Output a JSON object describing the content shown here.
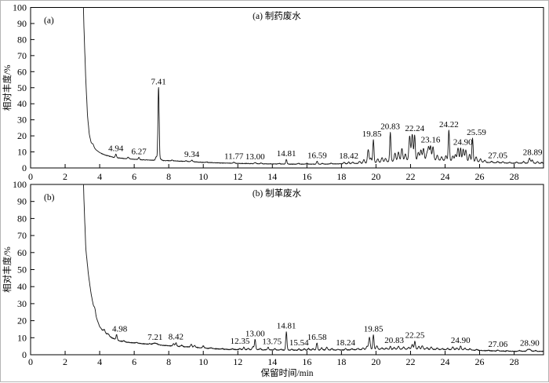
{
  "chart_data": {
    "type": "line",
    "figure_kind": "total-ion-chromatograms",
    "x_axis_title": "保留时间/min",
    "y_axis_title": "相对丰度/%",
    "panels": [
      {
        "panel_label": "(a)",
        "title": "(a) 制药废水",
        "ylabel": "相对丰度/%",
        "xlabel": "",
        "xlim": [
          0,
          29.7
        ],
        "ylim": [
          0,
          100
        ],
        "xticks": [
          0,
          2,
          4,
          6,
          8,
          10,
          12,
          14,
          16,
          18,
          20,
          22,
          24,
          26,
          28
        ],
        "yticks": [
          0,
          10,
          20,
          30,
          40,
          50,
          60,
          70,
          80,
          90,
          100
        ],
        "solvent_front_rt": 3.05,
        "noise": 0.22,
        "labeled_peaks": [
          {
            "rt": 4.94,
            "apex": 8.6,
            "label": "4.94"
          },
          {
            "rt": 6.27,
            "apex": 6.6,
            "label": "6.27"
          },
          {
            "rt": 7.41,
            "apex": 50,
            "label": "7.41"
          },
          {
            "rt": 9.34,
            "apex": 4.8,
            "label": "9.34",
            "w": 0.05
          },
          {
            "rt": 11.77,
            "apex": 3.5,
            "label": "11.77",
            "w": 0.05
          },
          {
            "rt": 13.0,
            "apex": 3.4,
            "label": "13.00",
            "w": 0.05
          },
          {
            "rt": 14.81,
            "apex": 5.2,
            "label": "14.81"
          },
          {
            "rt": 16.59,
            "apex": 4.2,
            "label": "16.59"
          },
          {
            "rt": 18.42,
            "apex": 3.8,
            "label": "18.42"
          },
          {
            "rt": 19.85,
            "apex": 17.5,
            "label": "19.85",
            "dx": -2
          },
          {
            "rt": 20.83,
            "apex": 22,
            "label": "20.83"
          },
          {
            "rt": 22.24,
            "apex": 20.5,
            "label": "22.24"
          },
          {
            "rt": 23.16,
            "apex": 13.5,
            "label": "23.16"
          },
          {
            "rt": 24.22,
            "apex": 23.5,
            "label": "24.22"
          },
          {
            "rt": 24.9,
            "apex": 12.5,
            "label": "24.90",
            "dx": 3
          },
          {
            "rt": 25.59,
            "apex": 18.5,
            "label": "25.59",
            "dx": 5
          },
          {
            "rt": 27.05,
            "apex": 4.0,
            "label": "27.05",
            "w": 0.05
          },
          {
            "rt": 28.89,
            "apex": 6.0,
            "label": "28.89",
            "dx": 4,
            "w": 0.05
          }
        ],
        "minor_peaks": [
          [
            3.62,
            1.2
          ],
          [
            5.65,
            1.0
          ],
          [
            7.28,
            2.2
          ],
          [
            7.55,
            0.8
          ],
          [
            8.2,
            0.5
          ],
          [
            9.0,
            0.4
          ],
          [
            10.2,
            0.3
          ],
          [
            13.35,
            0.5
          ],
          [
            14.4,
            0.4
          ],
          [
            15.5,
            0.5
          ],
          [
            16.0,
            0.5
          ],
          [
            16.9,
            0.4
          ],
          [
            17.4,
            0.5
          ],
          [
            18.15,
            0.8
          ],
          [
            18.65,
            0.9
          ],
          [
            19.05,
            1.2
          ],
          [
            19.3,
            2.2
          ],
          [
            19.55,
            8.5
          ],
          [
            19.7,
            3.0
          ],
          [
            20.1,
            2.2
          ],
          [
            20.35,
            2.8
          ],
          [
            20.55,
            2.2
          ],
          [
            21.1,
            5.0
          ],
          [
            21.3,
            5.5
          ],
          [
            21.5,
            7.5
          ],
          [
            21.7,
            4.0
          ],
          [
            21.95,
            15.0
          ],
          [
            22.1,
            16.0
          ],
          [
            22.45,
            4.5
          ],
          [
            22.6,
            6.0
          ],
          [
            22.75,
            7.0
          ],
          [
            22.95,
            4.0
          ],
          [
            23.05,
            8.0
          ],
          [
            23.3,
            8.3
          ],
          [
            23.55,
            3.0
          ],
          [
            23.8,
            2.2
          ],
          [
            24.05,
            3.0
          ],
          [
            24.45,
            3.0
          ],
          [
            24.6,
            4.0
          ],
          [
            24.75,
            8.0
          ],
          [
            25.05,
            7.5
          ],
          [
            25.2,
            7.0
          ],
          [
            25.42,
            4.5
          ],
          [
            25.8,
            3.0
          ],
          [
            26.05,
            2.0
          ],
          [
            26.3,
            1.2
          ],
          [
            26.7,
            0.8
          ],
          [
            27.35,
            0.8
          ],
          [
            27.75,
            0.6
          ],
          [
            28.15,
            0.7
          ],
          [
            28.55,
            1.0
          ],
          [
            29.05,
            2.0
          ],
          [
            29.35,
            1.0
          ],
          [
            29.6,
            0.6
          ]
        ],
        "baseline": [
          [
            3.02,
            115
          ],
          [
            3.1,
            84
          ],
          [
            3.2,
            54
          ],
          [
            3.3,
            32
          ],
          [
            3.4,
            21
          ],
          [
            3.5,
            16
          ],
          [
            3.65,
            13
          ],
          [
            3.8,
            11.2
          ],
          [
            4.0,
            9.6
          ],
          [
            4.3,
            8.1
          ],
          [
            4.7,
            6.9
          ],
          [
            5.0,
            6.3
          ],
          [
            5.5,
            5.8
          ],
          [
            6.0,
            5.4
          ],
          [
            6.6,
            5.0
          ],
          [
            7.2,
            4.8
          ],
          [
            7.8,
            4.6
          ],
          [
            8.5,
            4.3
          ],
          [
            9.3,
            3.9
          ],
          [
            10.0,
            3.5
          ],
          [
            10.8,
            3.2
          ],
          [
            11.8,
            2.9
          ],
          [
            12.8,
            2.7
          ],
          [
            14.0,
            2.5
          ],
          [
            15.0,
            2.4
          ],
          [
            16.0,
            2.4
          ],
          [
            17.0,
            2.4
          ],
          [
            18.0,
            2.6
          ],
          [
            18.8,
            2.8
          ],
          [
            19.5,
            3.0
          ],
          [
            20.3,
            3.6
          ],
          [
            21.0,
            4.2
          ],
          [
            21.8,
            4.8
          ],
          [
            22.5,
            5.2
          ],
          [
            23.2,
            5.0
          ],
          [
            24.0,
            4.7
          ],
          [
            24.8,
            4.3
          ],
          [
            25.6,
            4.0
          ],
          [
            26.2,
            3.6
          ],
          [
            27.0,
            3.2
          ],
          [
            27.8,
            3.0
          ],
          [
            28.6,
            3.0
          ],
          [
            29.3,
            2.9
          ],
          [
            29.7,
            2.8
          ]
        ]
      },
      {
        "panel_label": "(b)",
        "title": "(b) 制革废水",
        "ylabel": "相对丰度/%",
        "xlabel": "保留时间/min",
        "xlim": [
          0,
          29.7
        ],
        "ylim": [
          0,
          100
        ],
        "xticks": [
          0,
          2,
          4,
          6,
          8,
          10,
          12,
          14,
          16,
          18,
          20,
          22,
          24,
          26,
          28
        ],
        "yticks": [
          0,
          10,
          20,
          30,
          40,
          50,
          60,
          70,
          80,
          90,
          100
        ],
        "solvent_front_rt": 3.05,
        "noise": 0.28,
        "labeled_peaks": [
          {
            "rt": 4.98,
            "apex": 11.8,
            "label": "4.98",
            "dx": 4
          },
          {
            "rt": 7.21,
            "apex": 6.8,
            "label": "7.21",
            "w": 0.12
          },
          {
            "rt": 8.42,
            "apex": 7.0,
            "label": "8.42"
          },
          {
            "rt": 12.35,
            "apex": 4.4,
            "label": "12.35",
            "dx": -5
          },
          {
            "rt": 13.0,
            "apex": 9.0,
            "label": "13.00"
          },
          {
            "rt": 13.75,
            "apex": 4.5,
            "label": "13.75",
            "dx": 5
          },
          {
            "rt": 14.81,
            "apex": 13.3,
            "label": "14.81"
          },
          {
            "rt": 15.54,
            "apex": 3.6,
            "label": "15.54"
          },
          {
            "rt": 16.58,
            "apex": 7.0,
            "label": "16.58"
          },
          {
            "rt": 18.24,
            "apex": 3.7,
            "label": "18.24"
          },
          {
            "rt": 19.85,
            "apex": 11.7,
            "label": "19.85"
          },
          {
            "rt": 20.83,
            "apex": 5.0,
            "label": "20.83",
            "dx": 5
          },
          {
            "rt": 22.25,
            "apex": 7.9,
            "label": "22.25"
          },
          {
            "rt": 24.9,
            "apex": 5.2,
            "label": "24.90"
          },
          {
            "rt": 27.06,
            "apex": 2.7,
            "label": "27.06",
            "w": 0.05
          },
          {
            "rt": 28.9,
            "apex": 3.2,
            "label": "28.90",
            "w": 0.06
          }
        ],
        "minor_peaks": [
          [
            3.72,
            2.2
          ],
          [
            4.27,
            1.5
          ],
          [
            4.5,
            0.8
          ],
          [
            5.4,
            0.6
          ],
          [
            6.15,
            0.4
          ],
          [
            6.9,
            0.4
          ],
          [
            8.28,
            1.4
          ],
          [
            8.75,
            0.7
          ],
          [
            9.3,
            1.6
          ],
          [
            9.5,
            1.1
          ],
          [
            10.0,
            1.2
          ],
          [
            10.45,
            0.5
          ],
          [
            11.1,
            0.4
          ],
          [
            11.7,
            0.5
          ],
          [
            12.12,
            0.7
          ],
          [
            12.6,
            0.7
          ],
          [
            12.88,
            1.8
          ],
          [
            13.3,
            0.7
          ],
          [
            14.15,
            0.7
          ],
          [
            14.5,
            0.5
          ],
          [
            15.12,
            0.6
          ],
          [
            15.85,
            0.8
          ],
          [
            16.1,
            1.0
          ],
          [
            16.35,
            0.8
          ],
          [
            16.85,
            1.3
          ],
          [
            17.15,
            1.6
          ],
          [
            17.45,
            0.8
          ],
          [
            17.8,
            0.5
          ],
          [
            18.6,
            0.6
          ],
          [
            18.95,
            0.7
          ],
          [
            19.25,
            1.0
          ],
          [
            19.48,
            1.8
          ],
          [
            19.62,
            7.0
          ],
          [
            20.05,
            2.0
          ],
          [
            20.35,
            0.8
          ],
          [
            20.6,
            0.8
          ],
          [
            21.05,
            1.0
          ],
          [
            21.3,
            1.6
          ],
          [
            21.6,
            1.2
          ],
          [
            21.9,
            1.0
          ],
          [
            22.1,
            2.6
          ],
          [
            22.48,
            1.6
          ],
          [
            22.68,
            2.0
          ],
          [
            22.95,
            1.0
          ],
          [
            23.2,
            1.3
          ],
          [
            23.55,
            0.8
          ],
          [
            23.85,
            0.6
          ],
          [
            24.15,
            0.8
          ],
          [
            24.45,
            1.6
          ],
          [
            24.68,
            1.0
          ],
          [
            25.15,
            1.0
          ],
          [
            25.45,
            0.8
          ],
          [
            25.85,
            0.5
          ],
          [
            26.5,
            0.3
          ],
          [
            27.6,
            0.3
          ],
          [
            28.3,
            0.4
          ],
          [
            28.78,
            0.8
          ],
          [
            29.25,
            0.4
          ]
        ],
        "baseline": [
          [
            3.02,
            115
          ],
          [
            3.1,
            88
          ],
          [
            3.2,
            62
          ],
          [
            3.35,
            47
          ],
          [
            3.5,
            36
          ],
          [
            3.65,
            28
          ],
          [
            3.8,
            22
          ],
          [
            4.0,
            16.5
          ],
          [
            4.2,
            14
          ],
          [
            4.45,
            11.8
          ],
          [
            4.7,
            10
          ],
          [
            5.0,
            8.6
          ],
          [
            5.3,
            7.8
          ],
          [
            5.7,
            7.2
          ],
          [
            6.2,
            6.8
          ],
          [
            6.7,
            6.3
          ],
          [
            7.2,
            5.9
          ],
          [
            7.7,
            5.5
          ],
          [
            8.3,
            5.1
          ],
          [
            9.0,
            4.7
          ],
          [
            9.7,
            4.2
          ],
          [
            10.4,
            3.7
          ],
          [
            11.2,
            3.2
          ],
          [
            12.0,
            3.0
          ],
          [
            13.0,
            3.0
          ],
          [
            14.0,
            2.8
          ],
          [
            15.0,
            2.7
          ],
          [
            16.0,
            2.7
          ],
          [
            17.0,
            2.8
          ],
          [
            18.0,
            2.8
          ],
          [
            19.0,
            3.0
          ],
          [
            20.0,
            3.2
          ],
          [
            21.0,
            3.2
          ],
          [
            22.0,
            3.4
          ],
          [
            23.0,
            3.2
          ],
          [
            24.0,
            3.0
          ],
          [
            25.0,
            3.0
          ],
          [
            26.0,
            2.5
          ],
          [
            27.0,
            2.2
          ],
          [
            28.0,
            2.0
          ],
          [
            28.9,
            2.2
          ],
          [
            29.4,
            2.0
          ],
          [
            29.7,
            2.0
          ]
        ]
      }
    ],
    "line_color": "#141414",
    "background_color": "#ffffff",
    "grid": false,
    "legend": false
  }
}
